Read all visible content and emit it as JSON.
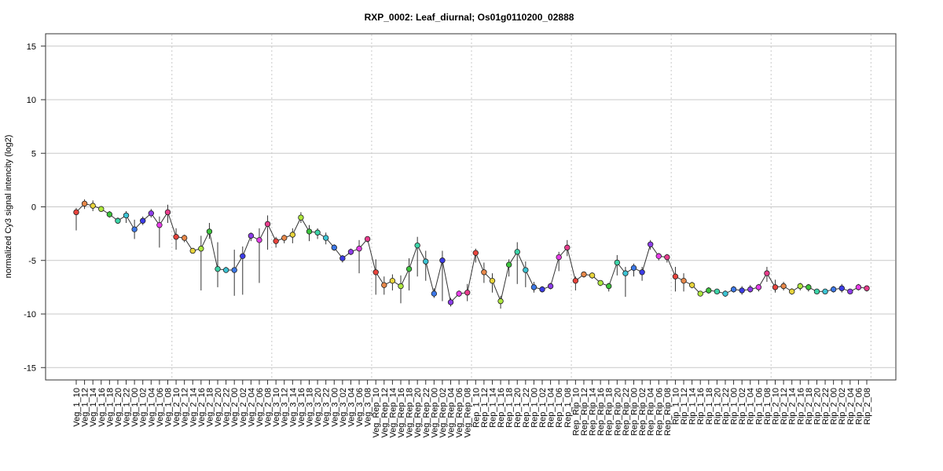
{
  "chart_data": {
    "type": "line",
    "title": "RXP_0002: Leaf_diurnal; Os01g0110200_02888",
    "ylabel": "normalized Cy3 signal intencity (log2)",
    "xlabel": "",
    "ylim": [
      -16,
      16
    ],
    "yticks": [
      -15,
      -10,
      -5,
      0,
      5,
      10,
      15
    ],
    "grid": true,
    "group_boundaries_after": [
      11,
      23,
      35,
      47,
      59,
      71,
      83,
      95
    ],
    "categories": [
      "Veg_1_10",
      "Veg_1_12",
      "Veg_1_14",
      "Veg_1_16",
      "Veg_1_18",
      "Veg_1_20",
      "Veg_1_22",
      "Veg_1_00",
      "Veg_1_02",
      "Veg_1_04",
      "Veg_1_06",
      "Veg_1_08",
      "Veg_2_10",
      "Veg_2_12",
      "Veg_2_14",
      "Veg_2_16",
      "Veg_2_18",
      "Veg_2_20",
      "Veg_2_22",
      "Veg_2_00",
      "Veg_2_02",
      "Veg_2_04",
      "Veg_2_06",
      "Veg_2_08",
      "Veg_3_10",
      "Veg_3_12",
      "Veg_3_14",
      "Veg_3_16",
      "Veg_3_18",
      "Veg_3_20",
      "Veg_3_22",
      "Veg_3_00",
      "Veg_3_02",
      "Veg_3_04",
      "Veg_3_06",
      "Veg_3_08",
      "Veg_Rep_10",
      "Veg_Rep_12",
      "Veg_Rep_14",
      "Veg_Rep_16",
      "Veg_Rep_18",
      "Veg_Rep_20",
      "Veg_Rep_22",
      "Veg_Rep_00",
      "Veg_Rep_02",
      "Veg_Rep_04",
      "Veg_Rep_06",
      "Veg_Rep_08",
      "Rep_1_10",
      "Rep_1_12",
      "Rep_1_14",
      "Rep_1_16",
      "Rep_1_18",
      "Rep_1_20",
      "Rep_1_22",
      "Rep_1_00",
      "Rep_1_02",
      "Rep_1_04",
      "Rep_1_06",
      "Rep_1_08",
      "Rep_Rip_10",
      "Rep_Rip_12",
      "Rep_Rip_14",
      "Rep_Rip_16",
      "Rep_Rip_18",
      "Rep_Rip_20",
      "Rep_Rip_22",
      "Rep_Rip_00",
      "Rep_Rip_02",
      "Rep_Rip_04",
      "Rep_Rip_06",
      "Rep_Rip_08",
      "Rip_1_10",
      "Rip_1_12",
      "Rip_1_14",
      "Rip_1_16",
      "Rip_1_18",
      "Rip_1_20",
      "Rip_1_22",
      "Rip_1_00",
      "Rip_1_02",
      "Rip_1_04",
      "Rip_1_06",
      "Rip_1_08",
      "Rip_2_10",
      "Rip_2_12",
      "Rip_2_14",
      "Rip_2_16",
      "Rip_2_18",
      "Rip_2_20",
      "Rip_2_22",
      "Rip_2_00",
      "Rip_2_02",
      "Rip_2_04",
      "Rip_2_06",
      "Rip_2_08"
    ],
    "values": [
      -0.5,
      0.3,
      0.1,
      -0.2,
      -0.7,
      -1.3,
      -0.8,
      -2.1,
      -1.3,
      -0.6,
      -1.7,
      -0.5,
      -2.8,
      -2.9,
      -4.1,
      -3.9,
      -2.3,
      -5.8,
      -5.9,
      -5.9,
      -4.6,
      -2.7,
      -3.1,
      -1.6,
      -3.2,
      -2.9,
      -2.6,
      -1.0,
      -2.3,
      -2.4,
      -2.9,
      -3.8,
      -4.8,
      -4.2,
      -3.9,
      -3.0,
      -6.1,
      -7.3,
      -6.9,
      -7.4,
      -5.8,
      -3.6,
      -5.1,
      -8.1,
      -5.0,
      -8.9,
      -8.1,
      -8.0,
      -4.3,
      -6.1,
      -6.9,
      -8.8,
      -5.4,
      -4.2,
      -5.9,
      -7.5,
      -7.7,
      -7.4,
      -4.7,
      -3.8,
      -6.9,
      -6.3,
      -6.4,
      -7.1,
      -7.4,
      -5.2,
      -6.2,
      -5.7,
      -6.1,
      -3.5,
      -4.6,
      -4.7,
      -6.5,
      -6.9,
      -7.3,
      -8.1,
      -7.8,
      -7.9,
      -8.1,
      -7.7,
      -7.8,
      -7.7,
      -7.5,
      -6.2,
      -7.5,
      -7.4,
      -7.9,
      -7.4,
      -7.5,
      -7.9,
      -7.9,
      -7.7,
      -7.6,
      -7.9,
      -7.5,
      -7.6
    ],
    "error_low": [
      -2.2,
      -0.2,
      -0.4,
      -0.4,
      -1.0,
      -1.5,
      -1.5,
      -3.0,
      -1.7,
      -1.0,
      -3.8,
      -1.5,
      -4.0,
      -3.3,
      -4.3,
      -7.8,
      -3.0,
      -7.5,
      -6.1,
      -8.3,
      -8.2,
      -3.2,
      -7.1,
      -4.0,
      -3.8,
      -3.4,
      -3.4,
      -1.5,
      -3.2,
      -3.0,
      -3.5,
      -4.1,
      -5.2,
      -4.5,
      -6.2,
      -3.3,
      -8.2,
      -8.2,
      -7.8,
      -9.0,
      -7.8,
      -6.5,
      -6.9,
      -8.5,
      -8.8,
      -9.3,
      -8.4,
      -8.8,
      -5.2,
      -7.1,
      -8.0,
      -9.5,
      -6.5,
      -7.2,
      -7.5,
      -8.0,
      -8.0,
      -7.7,
      -6.0,
      -4.6,
      -7.8,
      -6.6,
      -6.7,
      -7.4,
      -7.9,
      -6.4,
      -8.4,
      -6.5,
      -6.9,
      -4.0,
      -5.0,
      -5.2,
      -7.9,
      -7.9,
      -7.6,
      -8.3,
      -8.1,
      -8.1,
      -8.4,
      -8.0,
      -8.2,
      -8.0,
      -7.9,
      -7.0,
      -8.0,
      -7.8,
      -8.2,
      -7.8,
      -7.9,
      -8.1,
      -8.1,
      -8.0,
      -8.0,
      -8.1,
      -7.8,
      -7.9
    ],
    "error_high": [
      -0.1,
      0.7,
      0.6,
      0.0,
      -0.4,
      -1.0,
      -0.4,
      -1.2,
      -0.9,
      -0.2,
      -0.9,
      0.2,
      -2.0,
      -2.6,
      -3.9,
      -2.7,
      -1.5,
      -3.3,
      -5.6,
      -4.0,
      -3.7,
      -2.4,
      -2.0,
      -0.8,
      -2.8,
      -2.6,
      -2.0,
      -0.5,
      -1.7,
      -2.0,
      -2.4,
      -3.5,
      -4.5,
      -3.9,
      -3.1,
      -2.8,
      -4.9,
      -6.5,
      -6.3,
      -6.4,
      -4.8,
      -2.8,
      -4.1,
      -7.6,
      -4.1,
      -8.5,
      -7.8,
      -7.2,
      -3.9,
      -5.2,
      -6.2,
      -8.3,
      -4.9,
      -3.3,
      -5.1,
      -7.0,
      -7.4,
      -7.1,
      -4.2,
      -3.1,
      -6.5,
      -6.1,
      -6.2,
      -6.9,
      -7.1,
      -4.5,
      -5.6,
      -5.3,
      -5.6,
      -3.1,
      -4.3,
      -4.4,
      -5.6,
      -6.2,
      -7.0,
      -7.9,
      -7.5,
      -7.7,
      -7.8,
      -7.4,
      -7.4,
      -7.3,
      -7.2,
      -5.6,
      -6.8,
      -7.0,
      -7.6,
      -7.1,
      -7.2,
      -7.7,
      -7.7,
      -7.4,
      -7.2,
      -7.7,
      -7.2,
      -7.4
    ],
    "point_colors": [
      "#E8433C",
      "#E8884A",
      "#E8D43C",
      "#AEE83C",
      "#3CC43C",
      "#3CD4A8",
      "#3CC4D4",
      "#3C78E8",
      "#3C3CE8",
      "#8C3CE8",
      "#E83CE8",
      "#E83C8C"
    ]
  }
}
